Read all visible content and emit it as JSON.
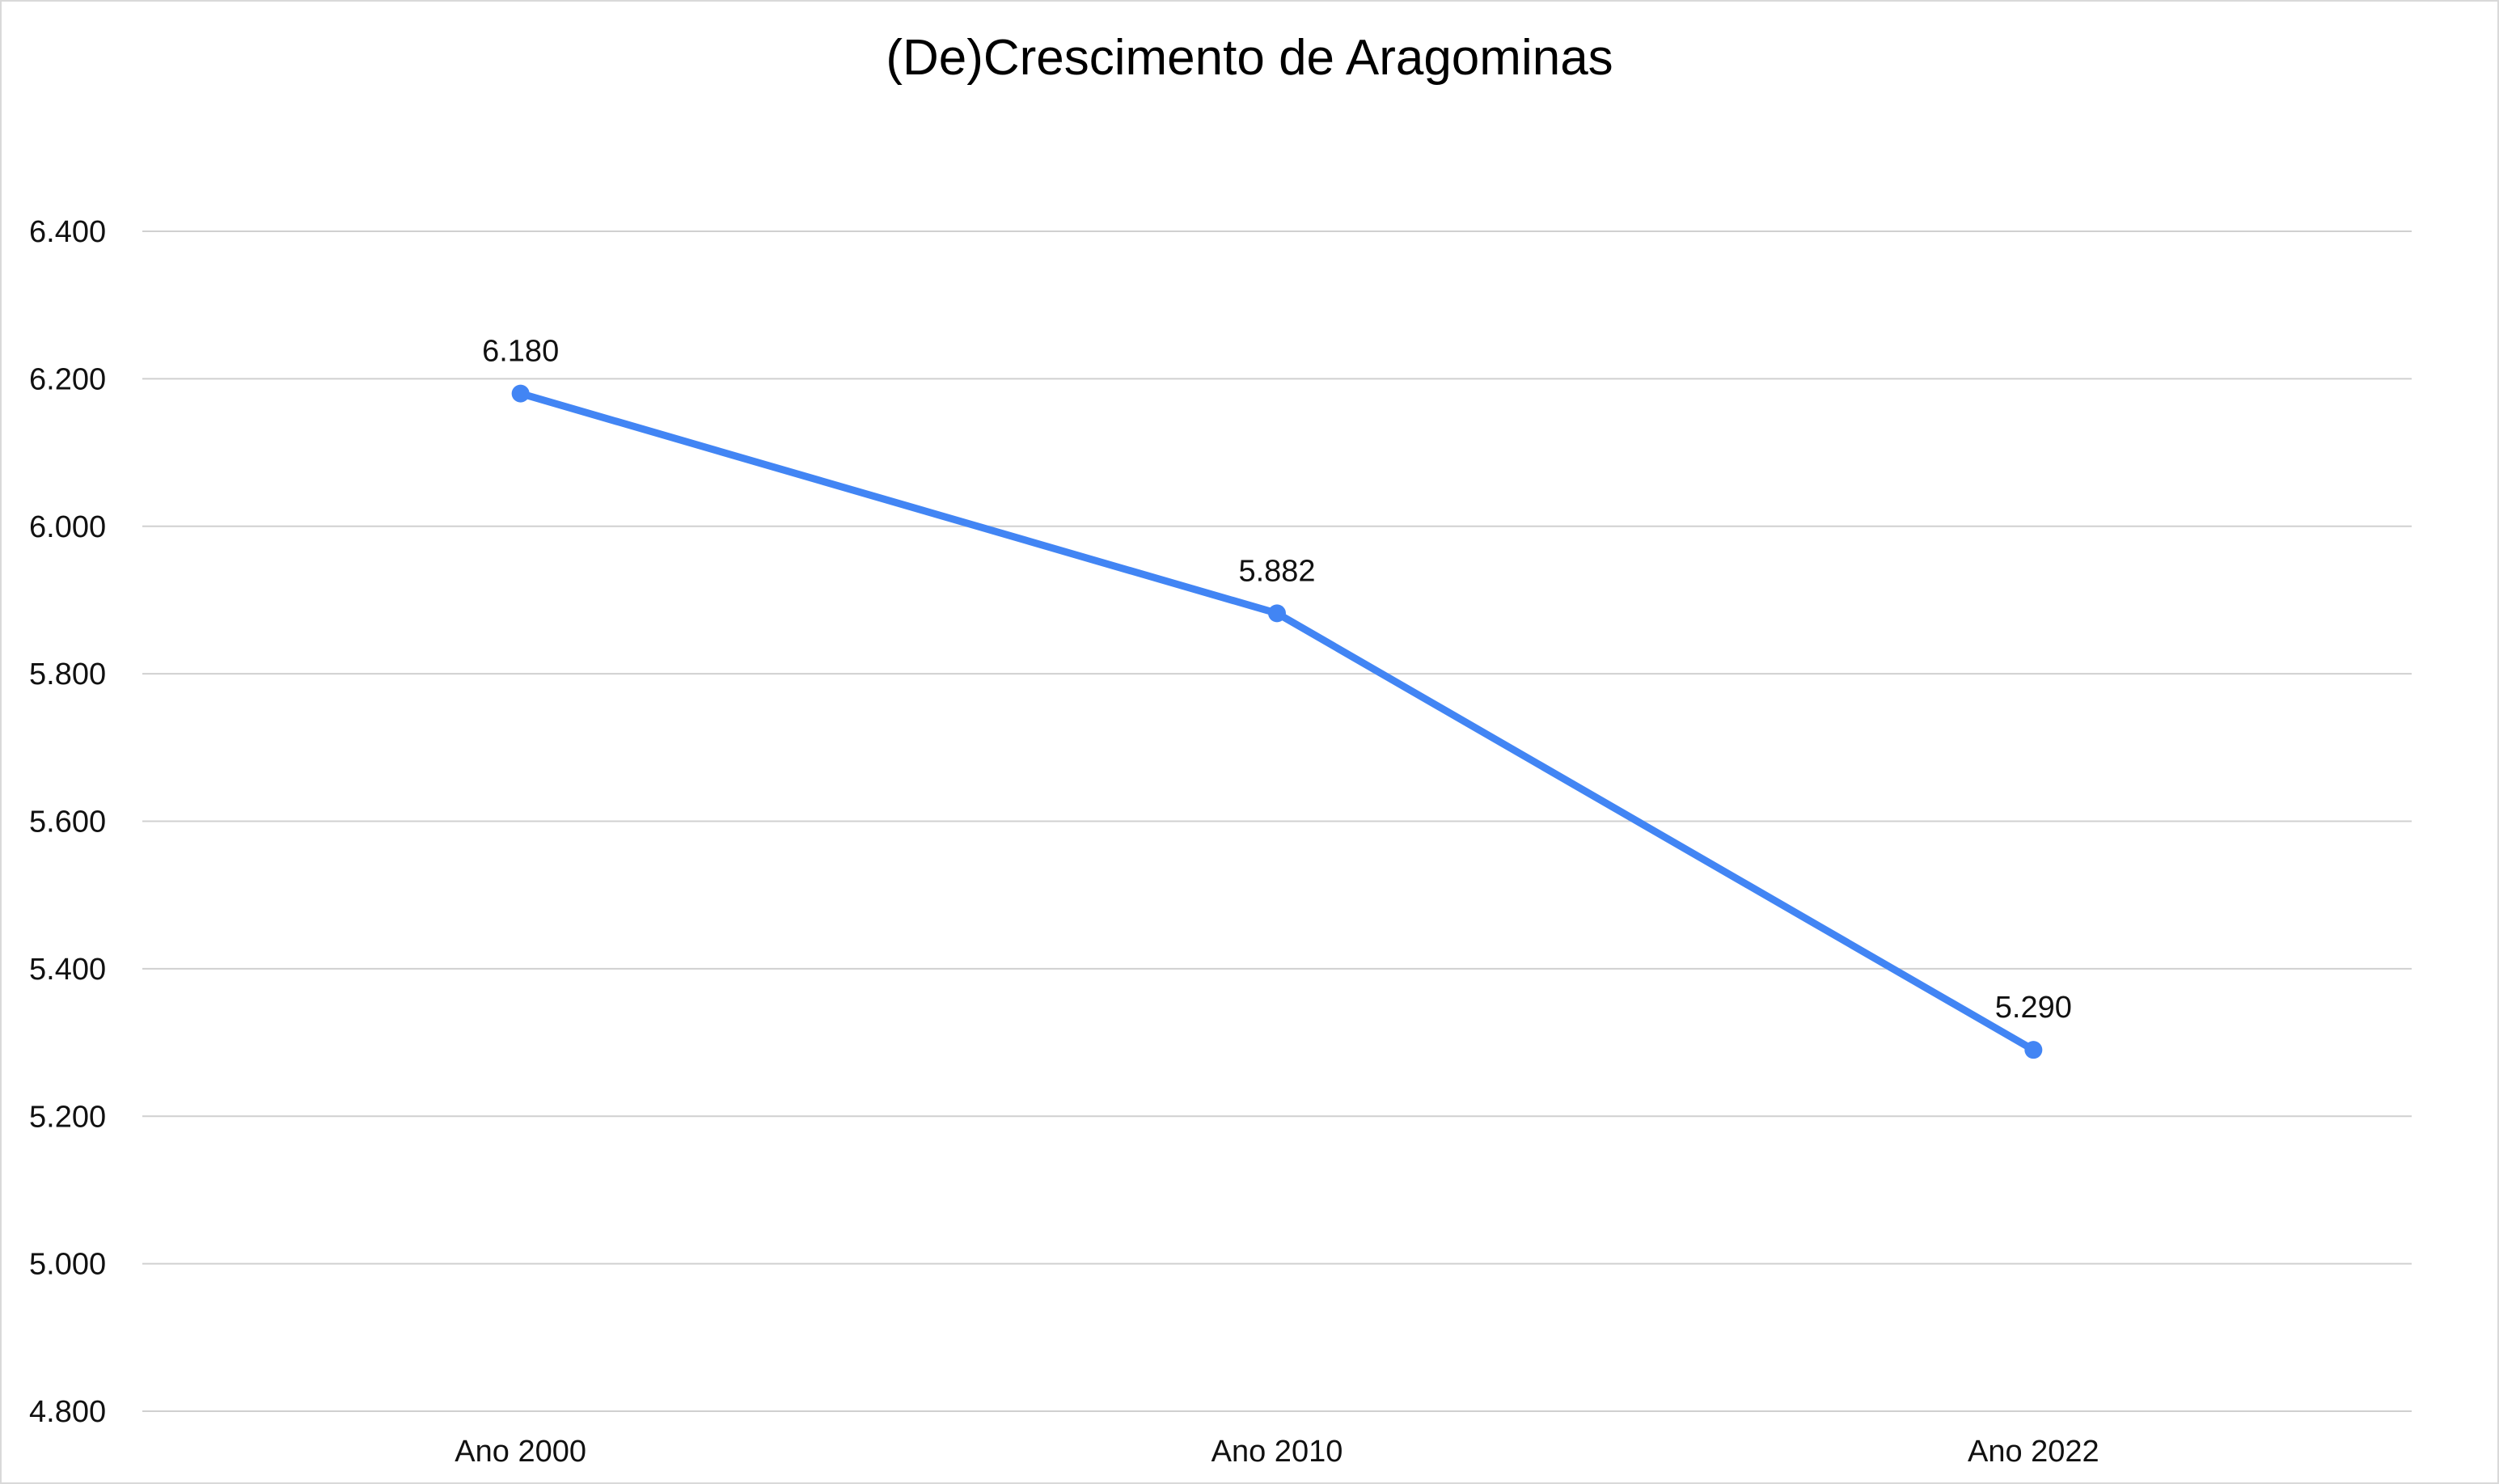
{
  "chart_data": {
    "type": "line",
    "title": "(De)Crescimento de Aragominas",
    "xlabel": "",
    "ylabel": "",
    "categories": [
      "Ano 2000",
      "Ano 2010",
      "Ano 2022"
    ],
    "series": [
      {
        "values": [
          6180,
          5882,
          5290
        ],
        "value_labels": [
          "6.180",
          "5.882",
          "5.290"
        ],
        "color": "#4285f4"
      }
    ],
    "ylim": [
      4800,
      6400
    ],
    "y_ticks": [
      4800,
      5000,
      5200,
      5400,
      5600,
      5800,
      6000,
      6200,
      6400
    ],
    "y_tick_labels": [
      "4.800",
      "5.000",
      "5.200",
      "5.400",
      "5.600",
      "5.800",
      "6.000",
      "6.200",
      "6.400"
    ],
    "grid": true,
    "legend": "none"
  }
}
